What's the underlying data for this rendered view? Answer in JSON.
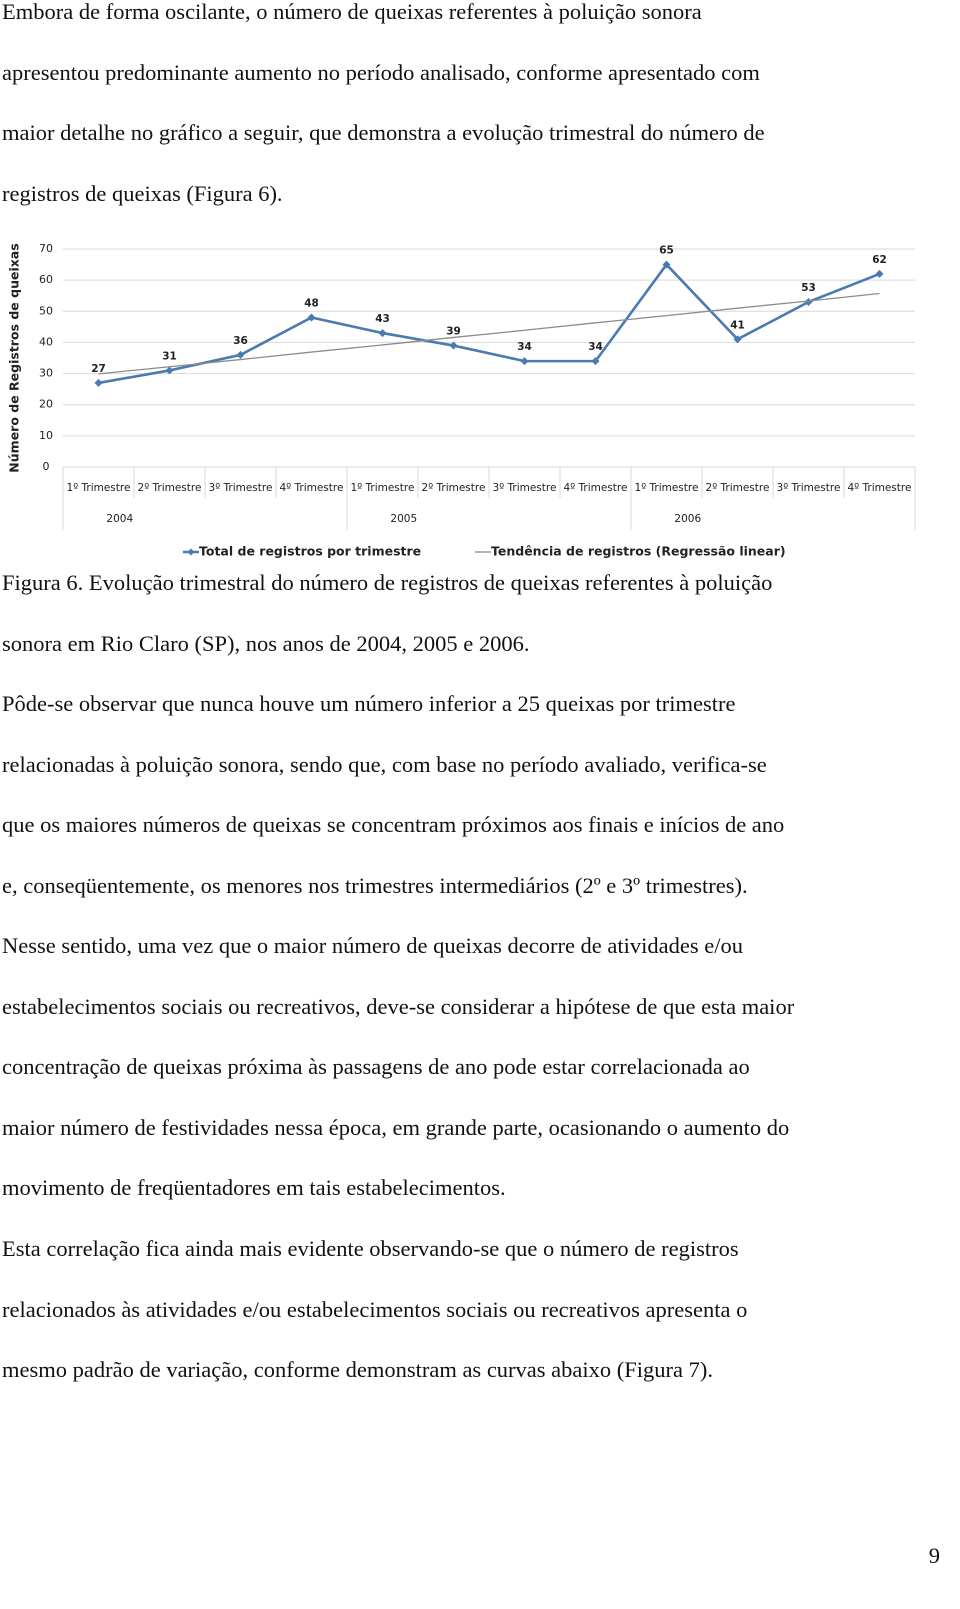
{
  "paragraphs": [
    [
      "Embora de forma oscilante, o número de queixas referentes à poluição sonora",
      "apresentou predominante aumento no período analisado, conforme apresentado com",
      "maior detalhe no gráfico a seguir, que demonstra a evolução trimestral do número de",
      "registros de queixas (Figura 6)."
    ],
    [
      "Pôde-se observar que nunca houve um número inferior a 25 queixas por trimestre",
      "relacionadas à poluição sonora, sendo que, com base no período avaliado, verifica-se",
      "que os maiores números de queixas se concentram próximos aos finais e inícios de ano",
      "e, conseqüentemente, os menores nos trimestres intermediários (2º e 3º trimestres)."
    ],
    [
      "Nesse sentido, uma vez que o maior número de queixas decorre de atividades e/ou",
      "estabelecimentos sociais ou recreativos, deve-se considerar a hipótese de que esta maior",
      "concentração de queixas próxima às passagens de ano pode estar correlacionada ao",
      "maior número de festividades nessa época, em grande parte, ocasionando o aumento do",
      "movimento de freqüentadores em tais estabelecimentos."
    ],
    [
      "Esta correlação fica ainda mais evidente observando-se que o número de registros",
      "relacionados às atividades e/ou estabelecimentos sociais ou recreativos apresenta o",
      "mesmo padrão de variação, conforme demonstram as curvas abaixo (Figura 7)."
    ]
  ],
  "caption": [
    "Figura 6. Evolução trimestral do número de registros de queixas referentes à poluição",
    "sonora em Rio Claro (SP), nos anos de 2004, 2005 e 2006."
  ],
  "page_number": "9",
  "chart_data": {
    "type": "line",
    "y_label": "Número de Registros de queixas",
    "categories": [
      "1º Trimestre",
      "2º Trimestre",
      "3º Trimestre",
      "4º Trimestre",
      "1º Trimestre",
      "2º Trimestre",
      "3º Trimestre",
      "4º Trimestre",
      "1º Trimestre",
      "2º Trimestre",
      "3º Trimestre",
      "4º Trimestre"
    ],
    "x_groups": [
      "2004",
      "2005",
      "2006"
    ],
    "series": [
      {
        "name": "Total de registros por trimestre",
        "color": "#4a7ab0",
        "values": [
          27,
          31,
          36,
          48,
          43,
          39,
          34,
          34,
          65,
          41,
          53,
          62
        ],
        "data_labels": true
      },
      {
        "name": "Tendência de registros (Regressão linear)",
        "color": "#8c8c8c",
        "values": [
          29.9,
          32.2,
          34.5,
          36.9,
          39.2,
          41.6,
          43.9,
          46.3,
          48.6,
          51.0,
          53.3,
          55.7
        ],
        "data_labels": false
      }
    ],
    "ylim": [
      0,
      70
    ],
    "yticks": [
      0,
      10,
      20,
      30,
      40,
      50,
      60,
      70
    ],
    "grid": true,
    "legend": "bottom"
  }
}
